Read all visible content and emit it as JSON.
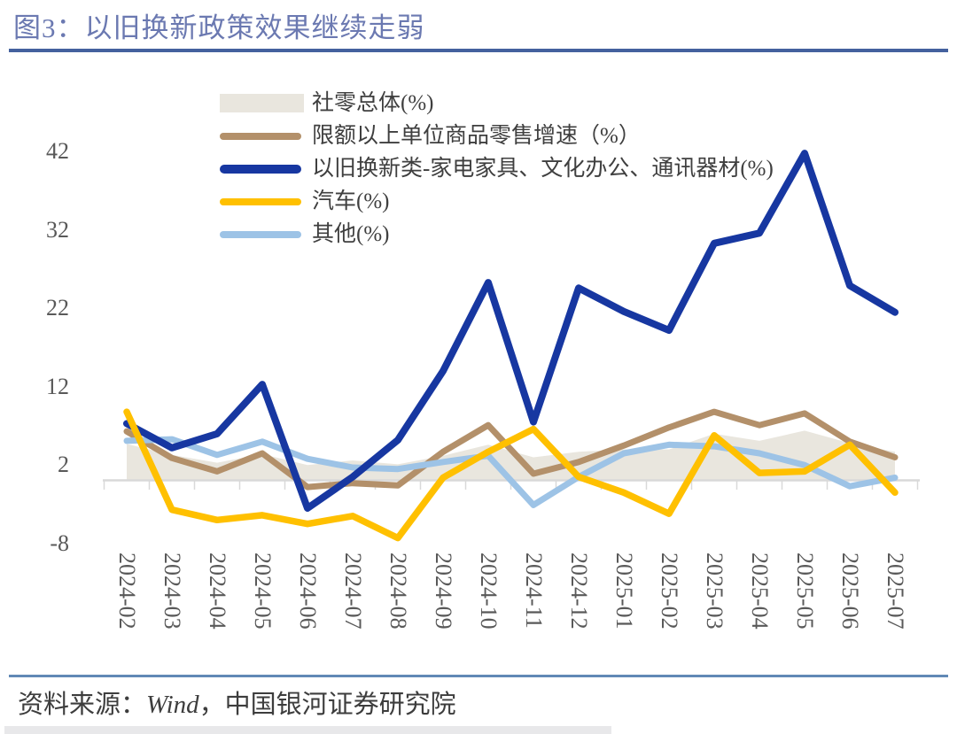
{
  "title": "图3：以旧换新政策效果继续走弱",
  "footer": {
    "prefix": "资料来源：",
    "source": "Wind",
    "suffix": "，中国银河证券研究院"
  },
  "colors": {
    "title_text": "#6b79b1",
    "title_rule": "#44619e",
    "footer_rule": "#6189b6",
    "axis_gray": "#d9d9d9",
    "tick_label": "#595959"
  },
  "chart_data": {
    "type": "line",
    "title": "以旧换新政策效果继续走弱",
    "xlabel": "",
    "ylabel": "",
    "ylim": [
      -8,
      44
    ],
    "y_ticks": [
      42,
      32,
      22,
      12,
      2,
      -8
    ],
    "grid": false,
    "legend_position": "top-left-vertical",
    "categories": [
      "2024-02",
      "2024-03",
      "2024-04",
      "2024-05",
      "2024-06",
      "2024-07",
      "2024-08",
      "2024-09",
      "2024-10",
      "2024-11",
      "2024-12",
      "2025-01",
      "2025-02",
      "2025-03",
      "2025-04",
      "2025-05",
      "2025-06",
      "2025-07"
    ],
    "series": [
      {
        "name": "社零总体(%)",
        "kind": "area",
        "color": "#e9e6de",
        "values": [
          4.7,
          3.3,
          2.3,
          3.4,
          2.0,
          2.6,
          2.1,
          3.2,
          4.6,
          3.0,
          3.7,
          4.0,
          4.0,
          6.0,
          5.1,
          6.4,
          4.8,
          3.7
        ]
      },
      {
        "name": "限额以上单位商品零售增速（%）",
        "kind": "line",
        "color": "#b3906a",
        "values": [
          6.3,
          2.9,
          1.2,
          3.5,
          -0.8,
          -0.3,
          -0.6,
          3.7,
          7.1,
          0.9,
          2.4,
          4.5,
          6.8,
          8.8,
          7.1,
          8.6,
          5.0,
          3.0
        ]
      },
      {
        "name": "以旧换新类-家电家具、文化办公、通讯器材(%)",
        "kind": "line",
        "color": "#1737a1",
        "values": [
          7.3,
          4.2,
          6.0,
          12.3,
          -3.5,
          0.5,
          5.2,
          14.0,
          25.3,
          7.5,
          24.6,
          21.6,
          19.2,
          30.3,
          31.6,
          41.8,
          24.9,
          21.5
        ]
      },
      {
        "name": "汽车(%)",
        "kind": "line",
        "color": "#ffc000",
        "values": [
          8.8,
          -3.7,
          -5.0,
          -4.4,
          -5.5,
          -4.5,
          -7.3,
          0.4,
          3.7,
          6.6,
          0.5,
          -1.5,
          -4.2,
          5.8,
          1.0,
          1.2,
          4.6,
          -1.5
        ]
      },
      {
        "name": "其他(%)",
        "kind": "line",
        "color": "#9dc3e6",
        "values": [
          5.1,
          5.3,
          3.3,
          5.0,
          2.8,
          1.7,
          1.5,
          2.4,
          3.2,
          -3.1,
          0.5,
          3.5,
          4.6,
          4.4,
          3.5,
          2.0,
          -0.7,
          0.4
        ]
      }
    ]
  }
}
